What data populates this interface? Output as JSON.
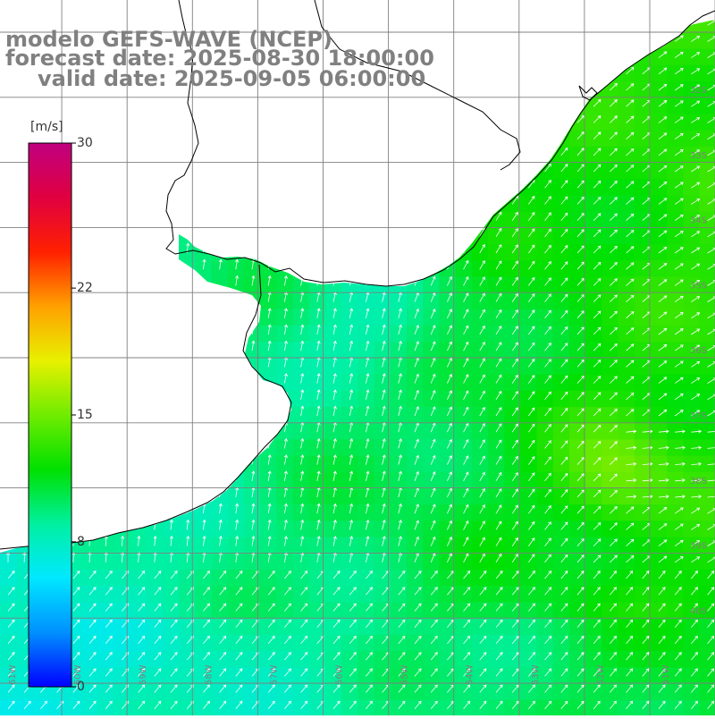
{
  "title": {
    "line1": "modelo GEFS-WAVE (NCEP)",
    "line2": "forecast date: 2025-08-30 18:00:00",
    "line3": "valid date: 2025-09-05 06:00:00"
  },
  "colorbar": {
    "units": "[m/s]",
    "ticks": [
      {
        "value": 30,
        "label": "30"
      },
      {
        "value": 22,
        "label": "22"
      },
      {
        "value": 15,
        "label": "15"
      },
      {
        "value": 8,
        "label": "8"
      },
      {
        "value": 0,
        "label": "0"
      }
    ],
    "min": 0,
    "max": 30,
    "colors": [
      "#0000ff",
      "#0090ff",
      "#00e8ff",
      "#00f0a0",
      "#00e000",
      "#70ec00",
      "#e8f000",
      "#ffa000",
      "#ff2000",
      "#e00040",
      "#c00080"
    ]
  },
  "map": {
    "variable": "wind speed",
    "lon_labels": [
      "61W",
      "60W",
      "59W",
      "58W",
      "57W",
      "56W",
      "55W",
      "54W",
      "53W",
      "52W",
      "51W"
    ],
    "lat_labels": [
      "32S",
      "33S",
      "34S",
      "35S",
      "36S",
      "37S",
      "38S",
      "39S",
      "40S"
    ],
    "colors": {
      "land": "#ffffff",
      "coastline": "#000000",
      "grid": "#808080",
      "arrows": "#ffffff"
    }
  }
}
